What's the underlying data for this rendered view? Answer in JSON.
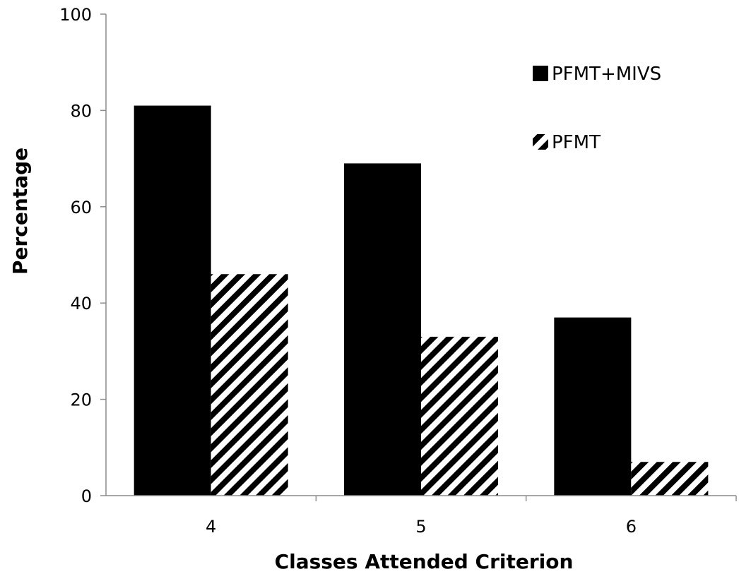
{
  "colors": {
    "background": "#ffffff",
    "series_solid": "#000000",
    "series_hatch_stroke": "#000000",
    "axis": "#8c8c8c"
  },
  "chart_data": {
    "type": "bar",
    "categories": [
      "4",
      "5",
      "6"
    ],
    "series": [
      {
        "name": "PFMT+MIVS",
        "values": [
          81,
          69,
          37
        ],
        "fill": "solid"
      },
      {
        "name": "PFMT",
        "values": [
          46,
          33,
          7
        ],
        "fill": "diagonal-hatch"
      }
    ],
    "title": "",
    "xlabel": "Classes Attended Criterion",
    "ylabel": "Percentage",
    "ylim": [
      0,
      100
    ],
    "yticks": [
      0,
      20,
      40,
      60,
      80,
      100
    ],
    "grid": false,
    "legend": "top-right"
  }
}
